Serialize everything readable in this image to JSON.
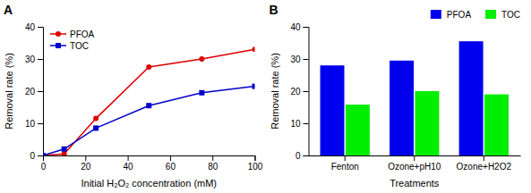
{
  "chart_data": [
    {
      "type": "line",
      "title": "A",
      "x": [
        0,
        10,
        25,
        50,
        75,
        100
      ],
      "series": [
        {
          "name": "PFOA",
          "color": "#dd0000",
          "marker": "circle",
          "values": [
            0,
            0.5,
            11.5,
            27.5,
            30,
            33
          ]
        },
        {
          "name": "TOC",
          "color": "#0000cc",
          "marker": "square",
          "values": [
            0,
            2,
            8.5,
            15.5,
            19.5,
            21.5
          ]
        }
      ],
      "x_label": "Initial H₂O₂ concentration (mM)",
      "y_label": "Removal rate (%)",
      "xlim": [
        0,
        100
      ],
      "xticks": [
        0,
        20,
        40,
        60,
        80,
        100
      ],
      "ylim": [
        0,
        40
      ],
      "yticks": [
        0,
        10,
        20,
        30,
        40
      ],
      "grid": false,
      "legend": "upper left"
    },
    {
      "type": "bar",
      "title": "B",
      "categories": [
        "Fenton",
        "Ozone+pH10",
        "Ozone+H2O2"
      ],
      "series": [
        {
          "name": "PFOA",
          "color": "#0000ee",
          "values": [
            28,
            29.5,
            35.5
          ]
        },
        {
          "name": "TOC",
          "color": "#00ee00",
          "values": [
            15.8,
            20,
            19
          ]
        }
      ],
      "x_label": "Treatments",
      "y_label": "Removal rate (%)",
      "ylim": [
        0,
        40
      ],
      "yticks": [
        0,
        10,
        20,
        30,
        40
      ],
      "grid": false,
      "legend": "upper right"
    }
  ]
}
